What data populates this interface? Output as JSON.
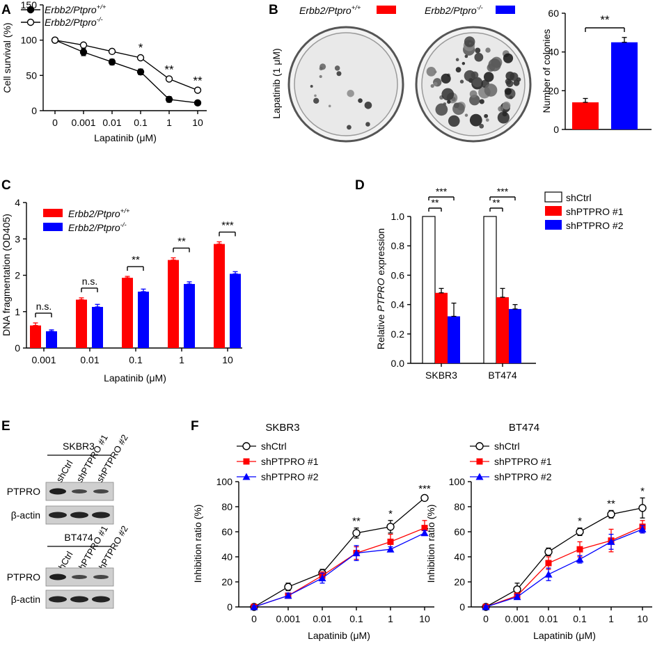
{
  "panels": {
    "A": {
      "letter": "A",
      "ylabel": "Cell survival (%)",
      "xlabel": "Lapatinib (μM)",
      "legend": [
        {
          "name": "Erbb2/Ptpro",
          "sup": "+/+",
          "marker": "filled"
        },
        {
          "name": "Erbb2/Ptpro",
          "sup": "-/-",
          "marker": "open"
        }
      ],
      "yticks": [
        "0",
        "50",
        "100",
        "150"
      ],
      "xticks": [
        "0",
        "0.001",
        "0.01",
        "0.1",
        "1",
        "10"
      ],
      "stars": [
        "",
        "",
        "",
        "*",
        "**",
        "**"
      ]
    },
    "B": {
      "letter": "B",
      "label_ptpro_wt": "Erbb2/Ptpro",
      "label_ptpro_wt_sup": "+/+",
      "label_ptpro_ko": "Erbb2/Ptpro",
      "label_ptpro_ko_sup": "-/-",
      "condition": "Lapatinib (1 μM)",
      "ylabel": "Number of colonies",
      "yticks": [
        "0",
        "20",
        "40",
        "60"
      ],
      "sig": "**"
    },
    "C": {
      "letter": "C",
      "ylabel": "DNA fragmentation (OD405)",
      "xlabel": "Lapatinib (μM)",
      "legend": [
        {
          "name": "Erbb2/Ptpro",
          "sup": "+/+"
        },
        {
          "name": "Erbb2/Ptpro",
          "sup": "-/-"
        }
      ],
      "yticks": [
        "0",
        "1",
        "2",
        "3",
        "4"
      ],
      "xticks": [
        "0.001",
        "0.01",
        "0.1",
        "1",
        "10"
      ],
      "sig": [
        "n.s.",
        "n.s.",
        "**",
        "**",
        "***"
      ]
    },
    "D": {
      "letter": "D",
      "ylabel_pre": "Relative ",
      "ylabel_gene": "PTPRO",
      "ylabel_post": " expression",
      "legend": [
        "shCtrl",
        "shPTPRO #1",
        "shPTPRO #2"
      ],
      "yticks": [
        "0.0",
        "0.2",
        "0.4",
        "0.6",
        "0.8",
        "1.0"
      ],
      "xticks": [
        "SKBR3",
        "BT474"
      ],
      "sig_pairs": [
        "**",
        "***",
        "**",
        "***"
      ]
    },
    "E": {
      "letter": "E",
      "blots": [
        {
          "cell_line": "SKBR3",
          "lanes": [
            "shCtrl",
            "shPTPRO #1",
            "shPTPRO #2"
          ],
          "rows": [
            "PTPRO",
            "β-actin"
          ]
        },
        {
          "cell_line": "BT474",
          "lanes": [
            "shCtrl",
            "shPTPRO #1",
            "shPTPRO #2"
          ],
          "rows": [
            "PTPRO",
            "β-actin"
          ]
        }
      ]
    },
    "F": {
      "letter": "F",
      "ylabel": "Inhibition ratio (%)",
      "xlabel": "Lapatinib (μM)",
      "legend": [
        "shCtrl",
        "shPTPRO #1",
        "shPTPRO #2"
      ],
      "yticks": [
        "0",
        "20",
        "40",
        "60",
        "80",
        "100"
      ],
      "xticks": [
        "0",
        "0.001",
        "0.01",
        "0.1",
        "1",
        "10"
      ],
      "plots": [
        {
          "title": "SKBR3",
          "stars": [
            "",
            "",
            "",
            "**",
            "*",
            "***"
          ]
        },
        {
          "title": "BT474",
          "stars": [
            "",
            "",
            "",
            "*",
            "**",
            "*"
          ]
        }
      ]
    }
  },
  "colors": {
    "red": "#ff0000",
    "blue": "#0000ff",
    "black": "#000000"
  },
  "chart_data": [
    {
      "panel": "A",
      "type": "line",
      "title": "",
      "xlabel": "Lapatinib (μM)",
      "ylabel": "Cell survival (%)",
      "categories": [
        "0",
        "0.001",
        "0.01",
        "0.1",
        "1",
        "10"
      ],
      "ylim": [
        0,
        150
      ],
      "series": [
        {
          "name": "Erbb2/Ptpro+/+",
          "values": [
            100,
            83,
            69,
            55,
            16,
            11
          ],
          "errors": [
            2,
            5,
            4,
            4,
            4,
            1
          ]
        },
        {
          "name": "Erbb2/Ptpro-/-",
          "values": [
            100,
            93,
            84,
            75,
            45,
            29
          ],
          "errors": [
            2,
            3,
            3,
            3,
            2,
            2
          ]
        }
      ]
    },
    {
      "panel": "B",
      "type": "bar",
      "ylabel": "Number of colonies",
      "categories": [
        "Erbb2/Ptpro+/+",
        "Erbb2/Ptpro-/-"
      ],
      "values": [
        14,
        45
      ],
      "errors": [
        2,
        2.5
      ],
      "ylim": [
        0,
        60
      ]
    },
    {
      "panel": "C",
      "type": "bar",
      "xlabel": "Lapatinib (μM)",
      "ylabel": "DNA fragmentation (OD405)",
      "categories": [
        "0.001",
        "0.01",
        "0.1",
        "1",
        "10"
      ],
      "ylim": [
        0,
        4
      ],
      "series": [
        {
          "name": "Erbb2/Ptpro+/+",
          "values": [
            0.62,
            1.33,
            1.93,
            2.42,
            2.86
          ],
          "errors": [
            0.07,
            0.05,
            0.04,
            0.06,
            0.06
          ]
        },
        {
          "name": "Erbb2/Ptpro-/-",
          "values": [
            0.46,
            1.13,
            1.55,
            1.76,
            2.04
          ],
          "errors": [
            0.04,
            0.07,
            0.07,
            0.06,
            0.06
          ]
        }
      ]
    },
    {
      "panel": "D",
      "type": "bar",
      "ylabel": "Relative PTPRO expression",
      "categories": [
        "SKBR3",
        "BT474"
      ],
      "ylim": [
        0,
        1.0
      ],
      "series": [
        {
          "name": "shCtrl",
          "values": [
            1.0,
            1.0
          ],
          "errors": [
            0,
            0
          ]
        },
        {
          "name": "shPTPRO #1",
          "values": [
            0.48,
            0.45
          ],
          "errors": [
            0.03,
            0.06
          ]
        },
        {
          "name": "shPTPRO #2",
          "values": [
            0.32,
            0.37
          ],
          "errors": [
            0.09,
            0.03
          ]
        }
      ]
    },
    {
      "panel": "F",
      "type": "line",
      "title": "SKBR3",
      "xlabel": "Lapatinib (μM)",
      "ylabel": "Inhibition ratio (%)",
      "categories": [
        "0",
        "0.001",
        "0.01",
        "0.1",
        "1",
        "10"
      ],
      "ylim": [
        0,
        100
      ],
      "series": [
        {
          "name": "shCtrl",
          "values": [
            0,
            16,
            27,
            59,
            64,
            87
          ],
          "errors": [
            1,
            3,
            3,
            4,
            5,
            2
          ]
        },
        {
          "name": "shPTPRO #1",
          "values": [
            0,
            9,
            25,
            43,
            52,
            63
          ],
          "errors": [
            1,
            2,
            3,
            5,
            6,
            6
          ]
        },
        {
          "name": "shPTPRO #2",
          "values": [
            0,
            9,
            23,
            43,
            46,
            59
          ],
          "errors": [
            1,
            2,
            4,
            6,
            2,
            2
          ]
        }
      ]
    },
    {
      "panel": "F",
      "type": "line",
      "title": "BT474",
      "xlabel": "Lapatinib (μM)",
      "ylabel": "Inhibition ratio (%)",
      "categories": [
        "0",
        "0.001",
        "0.01",
        "0.1",
        "1",
        "10"
      ],
      "ylim": [
        0,
        100
      ],
      "series": [
        {
          "name": "shCtrl",
          "values": [
            0,
            14,
            44,
            60,
            74,
            79
          ],
          "errors": [
            1,
            5,
            3,
            3,
            3,
            8
          ]
        },
        {
          "name": "shPTPRO #1",
          "values": [
            0,
            9,
            35,
            46,
            53,
            64
          ],
          "errors": [
            1,
            2,
            5,
            6,
            9,
            5
          ]
        },
        {
          "name": "shPTPRO #2",
          "values": [
            0,
            8,
            26,
            38,
            52,
            62
          ],
          "errors": [
            1,
            2,
            5,
            3,
            6,
            3
          ]
        }
      ]
    }
  ]
}
